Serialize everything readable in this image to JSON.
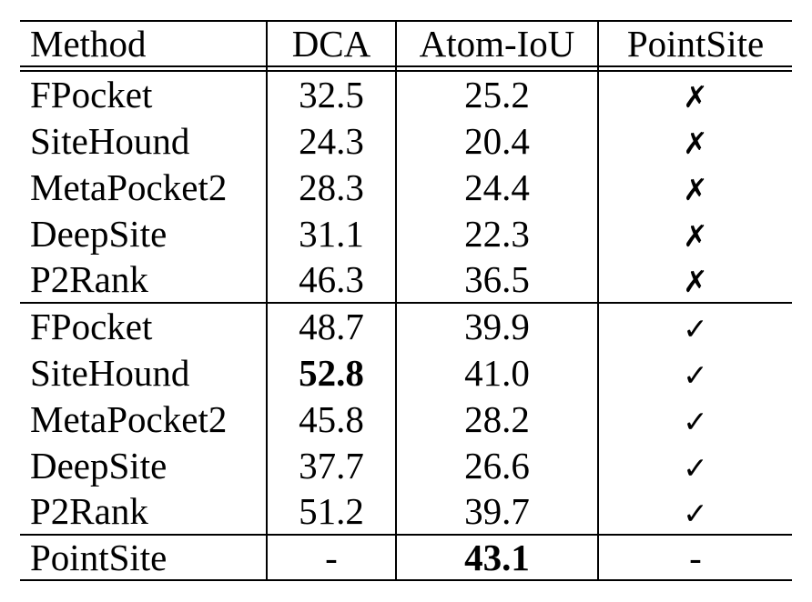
{
  "page": {
    "background_color": "#ffffff",
    "text_color": "#000000"
  },
  "table": {
    "headers": [
      {
        "label": "Method"
      },
      {
        "label": "DCA"
      },
      {
        "label": "Atom-IoU"
      },
      {
        "label": "PointSite"
      }
    ],
    "rows": [
      {
        "method": "FPocket",
        "dca": "32.5",
        "atom_iou": "25.2",
        "pointsite": "✗"
      },
      {
        "method": "SiteHound",
        "dca": "24.3",
        "atom_iou": "20.4",
        "pointsite": "✗"
      },
      {
        "method": "MetaPocket2",
        "dca": "28.3",
        "atom_iou": "24.4",
        "pointsite": "✗"
      },
      {
        "method": "DeepSite",
        "dca": "31.1",
        "atom_iou": "22.3",
        "pointsite": "✗"
      },
      {
        "method": "P2Rank",
        "dca": "46.3",
        "atom_iou": "36.5",
        "pointsite": "✗"
      },
      {
        "method": "FPocket",
        "dca": "48.7",
        "atom_iou": "39.9",
        "pointsite": "✓"
      },
      {
        "method": "SiteHound",
        "dca": "52.8",
        "atom_iou": "41.0",
        "pointsite": "✓"
      },
      {
        "method": "MetaPocket2",
        "dca": "45.8",
        "atom_iou": "28.2",
        "pointsite": "✓"
      },
      {
        "method": "DeepSite",
        "dca": "37.7",
        "atom_iou": "26.6",
        "pointsite": "✓"
      },
      {
        "method": "P2Rank",
        "dca": "51.2",
        "atom_iou": "39.7",
        "pointsite": "✓"
      },
      {
        "method": "PointSite",
        "dca": "-",
        "atom_iou": "43.1",
        "pointsite": "-"
      }
    ]
  }
}
